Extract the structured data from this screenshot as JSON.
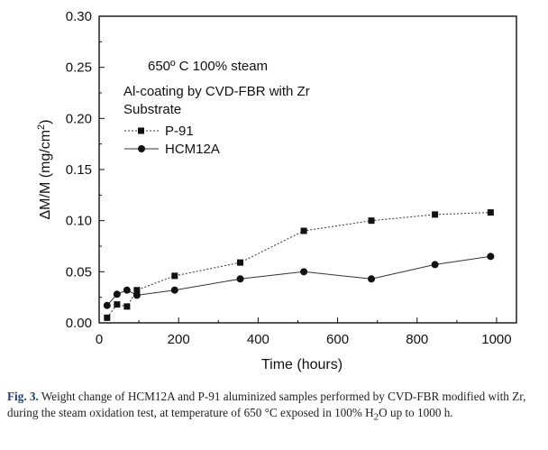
{
  "chart_data": {
    "type": "line",
    "title": "",
    "xlabel": "Time (hours)",
    "ylabel": "ΔM/M (mg/cm",
    "ylabel_sup": "2",
    "ylabel_end": ")",
    "xlim": [
      0,
      1050
    ],
    "ylim": [
      0.0,
      0.3
    ],
    "x_ticks": [
      0,
      200,
      400,
      600,
      800,
      1000
    ],
    "x_tick_labels": [
      "0",
      "200",
      "400",
      "600",
      "800",
      "1000"
    ],
    "y_ticks": [
      0.0,
      0.05,
      0.1,
      0.15,
      0.2,
      0.25,
      0.3
    ],
    "y_tick_labels": [
      "0.00",
      "0.05",
      "0.10",
      "0.15",
      "0.20",
      "0.25",
      "0.30"
    ],
    "grid": false,
    "legend_position": "top-left",
    "annotations": [
      "650º C 100% steam",
      "Al-coating by CVD-FBR with Zr",
      "Substrate"
    ],
    "series": [
      {
        "name": "P-91",
        "marker": "square",
        "line_style": "dotted",
        "x": [
          20,
          45,
          70,
          95,
          190,
          355,
          515,
          685,
          845,
          985
        ],
        "y": [
          0.005,
          0.018,
          0.016,
          0.032,
          0.046,
          0.059,
          0.09,
          0.1,
          0.106,
          0.108
        ]
      },
      {
        "name": "HCM12A",
        "marker": "circle",
        "line_style": "solid",
        "x": [
          20,
          45,
          70,
          95,
          190,
          355,
          515,
          685,
          845,
          985
        ],
        "y": [
          0.017,
          0.028,
          0.032,
          0.027,
          0.032,
          0.043,
          0.05,
          0.043,
          0.057,
          0.065
        ]
      }
    ]
  },
  "caption": {
    "label": "Fig. 3.",
    "text_part1": " Weight change of HCM12A and P-91 aluminized samples performed by CVD-FBR modified with Zr, during the steam oxidation test, at temperature of 650 °C exposed in 100% H",
    "sub": "2",
    "text_part2": "O up to 1000 h."
  }
}
